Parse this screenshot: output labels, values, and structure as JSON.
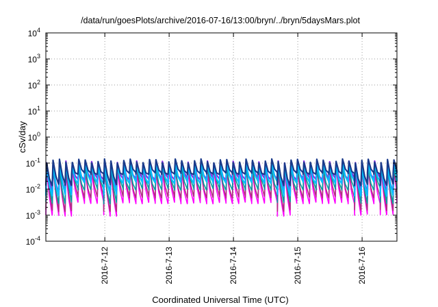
{
  "chart_data": {
    "type": "line",
    "title": "/data/run/goesPlots/archive/2016-07-16/13:00/bryn/../bryn/5daysMars.plot",
    "xlabel": "Coordinated Universal Time (UTC)",
    "ylabel": "cSv/day",
    "yscale": "log",
    "ylim": [
      0.0001,
      10000
    ],
    "y_ticks": [
      {
        "base": "10",
        "exp": "-4"
      },
      {
        "base": "10",
        "exp": "-3"
      },
      {
        "base": "10",
        "exp": "-2"
      },
      {
        "base": "10",
        "exp": "-1"
      },
      {
        "base": "10",
        "exp": "0"
      },
      {
        "base": "10",
        "exp": "1"
      },
      {
        "base": "10",
        "exp": "2"
      },
      {
        "base": "10",
        "exp": "3"
      },
      {
        "base": "10",
        "exp": "4"
      }
    ],
    "xlim": [
      2016.0,
      0
    ],
    "x_range_days": [
      "2016-07-11 02:00",
      "2016-07-16 13:00"
    ],
    "x_ticks": [
      "2016-7-12",
      "2016-7-13",
      "2016-7-14",
      "2016-7-15",
      "2016-7-16"
    ],
    "grid": true,
    "legend": "none",
    "pattern": {
      "period_hours": 2.4,
      "dip_segments": [
        [
          "2016-07-11 02:00",
          "2016-07-11 12:00"
        ],
        [
          "2016-07-12 00:00",
          "2016-07-12 04:00"
        ],
        [
          "2016-07-14 16:00",
          "2016-07-14 22:00"
        ],
        [
          "2016-07-15 22:00",
          "2016-07-16 02:00"
        ],
        [
          "2016-07-16 08:00",
          "2016-07-16 13:00"
        ]
      ]
    },
    "series": [
      {
        "color": "#ff00ff",
        "peak": 0.05,
        "trough": 0.003,
        "dip_trough": 0.001
      },
      {
        "color": "#b03080",
        "peak": 0.06,
        "trough": 0.005,
        "dip_trough": 0.0015
      },
      {
        "color": "#00a0a0",
        "peak": 0.07,
        "trough": 0.01,
        "dip_trough": 0.003
      },
      {
        "color": "#8a2be2",
        "peak": 0.1,
        "trough": 0.025,
        "dip_trough": 0.008
      },
      {
        "color": "#00bfff",
        "peak": 0.09,
        "trough": 0.018,
        "dip_trough": 0.006
      },
      {
        "color": "#1a3a8a",
        "peak": 0.12,
        "trough": 0.04,
        "dip_trough": 0.015
      }
    ]
  }
}
